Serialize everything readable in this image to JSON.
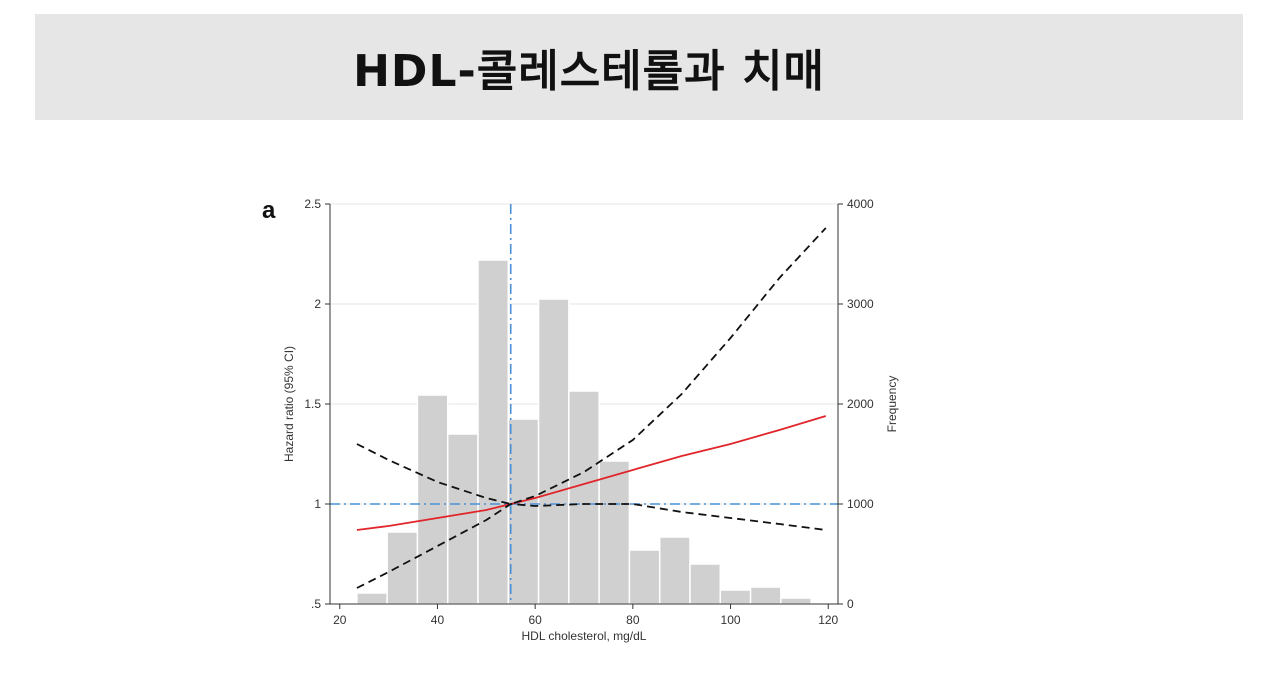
{
  "page": {
    "title": "HDL-콜레스테롤과 치매"
  },
  "chart_data": {
    "type": "bar",
    "panel_label": "a",
    "xlabel": "HDL cholesterol, mg/dL",
    "ylabel_left": "Hazard ratio (95% CI)",
    "ylabel_right": "Frequency",
    "xlim": [
      18,
      122
    ],
    "xticks": [
      20,
      40,
      60,
      80,
      100,
      120
    ],
    "ylim_left": [
      0.5,
      2.5
    ],
    "yticks_left": [
      0.5,
      1,
      1.5,
      2,
      2.5
    ],
    "yticks_left_labels": [
      ".5",
      "1",
      "1.5",
      "2",
      "2.5"
    ],
    "ylim_right": [
      0,
      4000
    ],
    "yticks_right": [
      0,
      1000,
      2000,
      3000,
      4000
    ],
    "histogram": {
      "bin_width": 6.2,
      "bin_starts": [
        23.5,
        29.7,
        35.9,
        42.1,
        48.3,
        54.5,
        60.7,
        66.9,
        73.1,
        79.3,
        85.5,
        91.7,
        97.9,
        104.1,
        110.3,
        116.5
      ],
      "frequencies": [
        110,
        720,
        2090,
        1700,
        3440,
        1850,
        3050,
        2130,
        1430,
        540,
        670,
        400,
        140,
        170,
        60,
        0
      ]
    },
    "series": [
      {
        "role": "hazard_ratio",
        "color": "#e0262b",
        "style": "solid",
        "x": [
          23.5,
          30,
          40,
          50,
          55,
          60,
          70,
          80,
          90,
          100,
          110,
          119.5
        ],
        "y": [
          0.87,
          0.89,
          0.93,
          0.97,
          1.0,
          1.03,
          1.1,
          1.17,
          1.24,
          1.3,
          1.37,
          1.44
        ]
      },
      {
        "role": "upper_ci",
        "color": "#111111",
        "style": "dashed",
        "x": [
          23.5,
          30,
          40,
          50,
          55,
          60,
          70,
          80,
          90,
          100,
          110,
          119.5
        ],
        "y": [
          1.3,
          1.22,
          1.11,
          1.03,
          1.0,
          1.04,
          1.16,
          1.32,
          1.55,
          1.83,
          2.13,
          2.38
        ]
      },
      {
        "role": "lower_ci",
        "color": "#111111",
        "style": "dashed",
        "x": [
          23.5,
          30,
          40,
          50,
          55,
          60,
          70,
          80,
          90,
          100,
          110,
          119.5
        ],
        "y": [
          0.58,
          0.66,
          0.79,
          0.92,
          1.0,
          0.99,
          1.0,
          1.0,
          0.96,
          0.93,
          0.9,
          0.87
        ]
      }
    ],
    "reference_lines": {
      "vertical_x": 55,
      "horizontal_y": 1,
      "color": "#4a90d9",
      "style": "dash-dot"
    },
    "colors": {
      "bars": "#d0d0d0",
      "axis": "#333333",
      "grid": "#e6e6e6"
    }
  }
}
